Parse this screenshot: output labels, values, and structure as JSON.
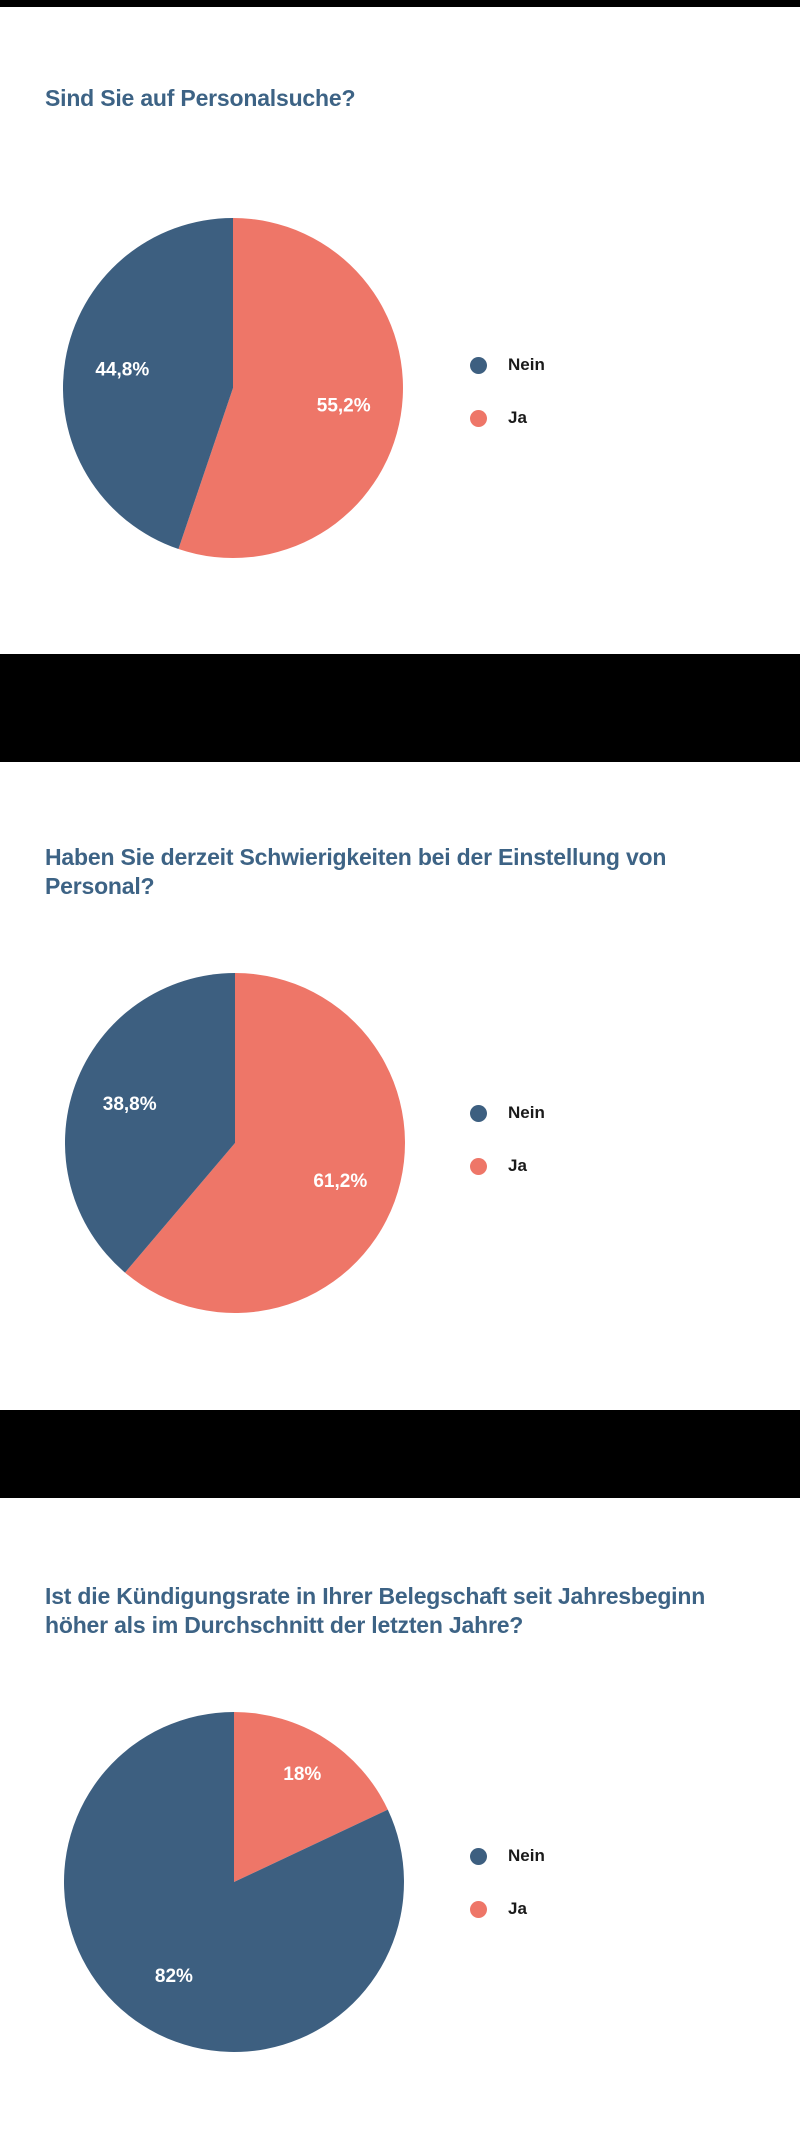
{
  "colors": {
    "background": "#FFFFFF",
    "separator": "#000000",
    "title_text": "#3D6385",
    "legend_text": "#1A1A1A",
    "slice_label_text": "#FFFFFF",
    "nein": "#3D5F80",
    "ja": "#EE7668"
  },
  "chart_data": [
    {
      "type": "pie",
      "title": "Sind Sie auf Personalsuche?",
      "start_angle_deg": 0,
      "direction": "clockwise",
      "legend_position": "right",
      "slices": [
        {
          "name": "Ja",
          "value": 55.2,
          "label": "55,2%",
          "color": "#EE7668"
        },
        {
          "name": "Nein",
          "value": 44.8,
          "label": "44,8%",
          "color": "#3D5F80"
        }
      ],
      "legend": [
        {
          "label": "Nein",
          "color": "#3D5F80"
        },
        {
          "label": "Ja",
          "color": "#EE7668"
        }
      ]
    },
    {
      "type": "pie",
      "title": "Haben Sie derzeit Schwierigkeiten bei der Einstellung von Personal?",
      "start_angle_deg": 0,
      "direction": "clockwise",
      "legend_position": "right",
      "slices": [
        {
          "name": "Ja",
          "value": 61.2,
          "label": "61,2%",
          "color": "#EE7668"
        },
        {
          "name": "Nein",
          "value": 38.8,
          "label": "38,8%",
          "color": "#3D5F80"
        }
      ],
      "legend": [
        {
          "label": "Nein",
          "color": "#3D5F80"
        },
        {
          "label": "Ja",
          "color": "#EE7668"
        }
      ]
    },
    {
      "type": "pie",
      "title": "Ist die Kündigungsrate in Ihrer Belegschaft seit Jahresbeginn höher als im Durchschnitt der letzten Jahre?",
      "start_angle_deg": 0,
      "direction": "clockwise",
      "legend_position": "right",
      "slices": [
        {
          "name": "Ja",
          "value": 18,
          "label": "18%",
          "color": "#EE7668"
        },
        {
          "name": "Nein",
          "value": 82,
          "label": "82%",
          "color": "#3D5F80"
        }
      ],
      "legend": [
        {
          "label": "Nein",
          "color": "#3D5F80"
        },
        {
          "label": "Ja",
          "color": "#EE7668"
        }
      ]
    }
  ]
}
